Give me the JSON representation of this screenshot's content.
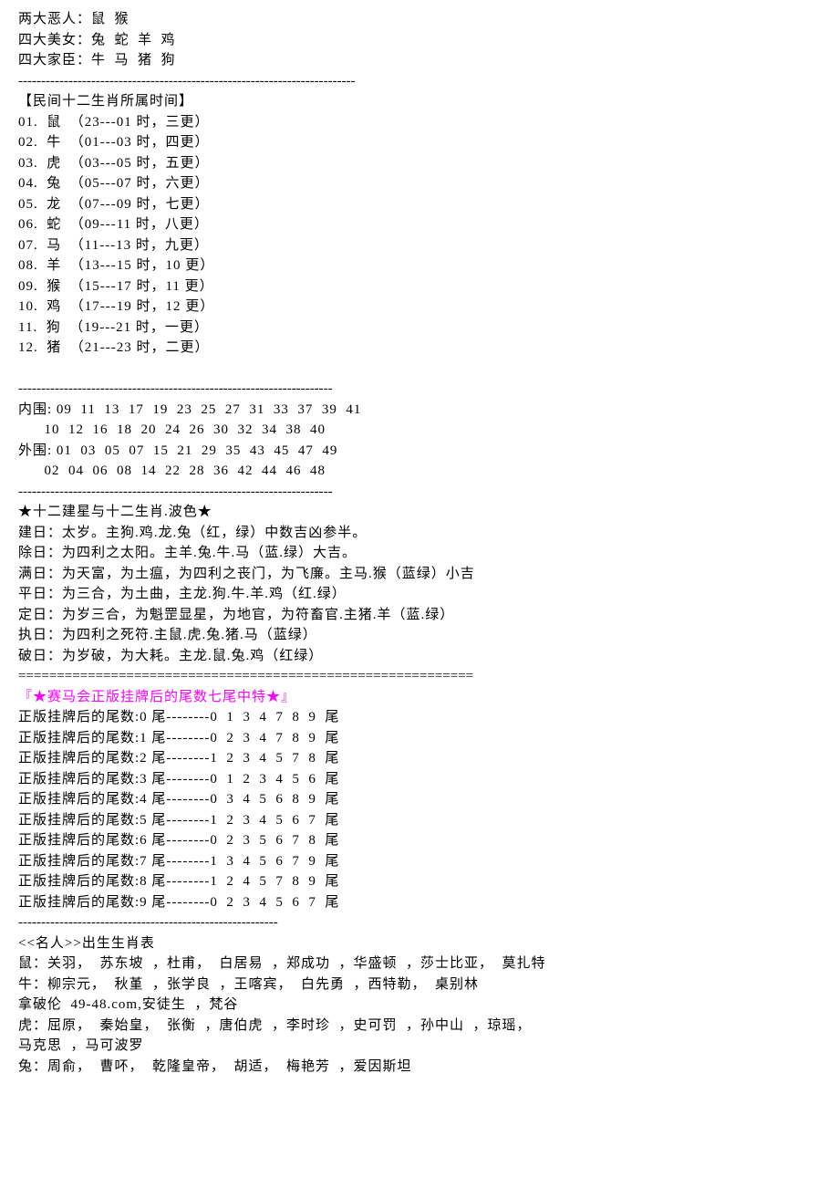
{
  "header": {
    "villains": "两大恶人：鼠  猴",
    "beauties": "四大美女：兔  蛇  羊  鸡",
    "ministers": "四大家臣：牛  马  猪  狗"
  },
  "dividers": {
    "dash_long": "--------------------------------------------------------------------------",
    "dash_medium": "---------------------------------------------------------------------",
    "dash_short": "---------------------------------------------------------",
    "dash_short2": "-----------------------------------------------------------",
    "equals": "==========================================================="
  },
  "zodiac_time": {
    "title": "【民间十二生肖所属时间】",
    "items": [
      "01.  鼠  （23---01 时，三更）",
      "02.  牛  （01---03 时，四更）",
      "03.  虎  （03---05 时，五更）",
      "04.  兔  （05---07 时，六更）",
      "05.  龙  （07---09 时，七更）",
      "06.  蛇  （09---11 时，八更）",
      "07.  马  （11---13 时，九更）",
      "08.  羊  （13---15 时，10 更）",
      "09.  猴  （15---17 时，11 更）",
      "10.  鸡  （17---19 时，12 更）",
      "11.  狗  （19---21 时，一更）",
      "12.  猪  （21---23 时，二更）"
    ]
  },
  "circles": {
    "inner1": "内围: 09  11  13  17  19  23  25  27  31  33  37  39  41",
    "inner2": "      10  12  16  18  20  24  26  30  32  34  38  40",
    "outer1": "外围: 01  03  05  07  15  21  29  35  43  45  47  49",
    "outer2": "      02  04  06  08  14  22  28  36  42  44  46  48"
  },
  "stars": {
    "title": "★十二建星与十二生肖.波色★",
    "items": [
      "建日：太岁。主狗.鸡.龙.兔（红，绿）中数吉凶参半。",
      "除日：为四利之太阳。主羊.兔.牛.马（蓝.绿）大吉。",
      "满日：为天富，为土瘟，为四利之丧门，为飞廉。主马.猴（蓝绿）小吉",
      "平日：为三合，为土曲，主龙.狗.牛.羊.鸡（红.绿）",
      "定日：为岁三合，为魁罡显星，为地官，为符畜官.主猪.羊（蓝.绿）",
      "执日：为四利之死符.主鼠.虎.兔.猪.马（蓝绿）",
      "破日：为岁破，为大耗。主龙.鼠.兔.鸡（红绿）"
    ]
  },
  "tail_section": {
    "title": "『★赛马会正版挂牌后的尾数七尾中特★』",
    "items": [
      "正版挂牌后的尾数:0 尾--------0  1  3  4  7  8  9  尾",
      "正版挂牌后的尾数:1 尾--------0  2  3  4  7  8  9  尾",
      "正版挂牌后的尾数:2 尾--------1  2  3  4  5  7  8  尾",
      "正版挂牌后的尾数:3 尾--------0  1  2  3  4  5  6  尾",
      "正版挂牌后的尾数:4 尾--------0  3  4  5  6  8  9  尾",
      "正版挂牌后的尾数:5 尾--------1  2  3  4  5  6  7  尾",
      "正版挂牌后的尾数:6 尾--------0  2  3  5  6  7  8  尾",
      "正版挂牌后的尾数:7 尾--------1  3  4  5  6  7  9  尾",
      "正版挂牌后的尾数:8 尾--------1  2  4  5  7  8  9  尾",
      "正版挂牌后的尾数:9 尾--------0  2  3  4  5  6  7  尾"
    ]
  },
  "celebrities": {
    "title": "<<名人>>出生生肖表",
    "items": [
      "鼠：关羽，  苏东坡  ，杜甫，  白居易  ，郑成功  ，华盛顿  ，莎士比亚，  莫扎特",
      "牛：柳宗元，  秋堇  ，张学良  ，王喀宾，  白先勇  ，西特勒，  桌别林",
      "拿破伦  49-48.com,安徒生  ，梵谷",
      "虎：屈原，  秦始皇，  张衡  ，唐伯虎  ，李时珍  ，史可罚  ，孙中山  ，琼瑶，",
      "马克思  ，马可波罗",
      "兔：周俞，  曹吥，  乾隆皇帝，  胡适，  梅艳芳  ，爱因斯坦"
    ]
  }
}
